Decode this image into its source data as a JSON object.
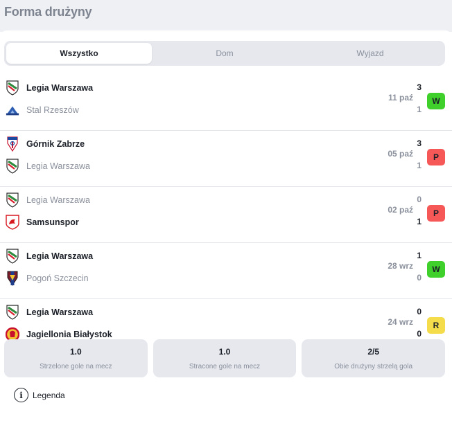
{
  "header": {
    "title": "Forma drużyny"
  },
  "tabs": [
    {
      "label": "Wszystko"
    },
    {
      "label": "Dom"
    },
    {
      "label": "Wyjazd"
    }
  ],
  "matches": [
    {
      "home": {
        "name": "Legia Warszawa",
        "crest": "legia-crest",
        "score": "3"
      },
      "away": {
        "name": "Stal Rzeszów",
        "crest": "stal-rzeszow-crest",
        "score": "1"
      },
      "date": "11 paź",
      "result": "W",
      "result_color": "#3fd02c"
    },
    {
      "home": {
        "name": "Górnik Zabrze",
        "crest": "gornik-zabrze-crest",
        "score": "3"
      },
      "away": {
        "name": "Legia Warszawa",
        "crest": "legia-crest",
        "score": "1"
      },
      "date": "05 paź",
      "result": "P",
      "result_color": "#f65858"
    },
    {
      "home": {
        "name": "Legia Warszawa",
        "crest": "legia-crest",
        "score": "0"
      },
      "away": {
        "name": "Samsunspor",
        "crest": "samsunspor-crest",
        "score": "1"
      },
      "date": "02 paź",
      "result": "P",
      "result_color": "#f65858"
    },
    {
      "home": {
        "name": "Legia Warszawa",
        "crest": "legia-crest",
        "score": "1"
      },
      "away": {
        "name": "Pogoń Szczecin",
        "crest": "pogon-szczecin-crest",
        "score": "0"
      },
      "date": "28 wrz",
      "result": "W",
      "result_color": "#3fd02c"
    },
    {
      "home": {
        "name": "Legia Warszawa",
        "crest": "legia-crest",
        "score": "0"
      },
      "away": {
        "name": "Jagiellonia Białystok",
        "crest": "jagiellonia-crest",
        "score": "0"
      },
      "date": "24 wrz",
      "result": "R",
      "result_color": "#f4dc4b"
    }
  ],
  "stats": [
    {
      "value": "1.0",
      "label": "Strzelone gole na mecz"
    },
    {
      "value": "1.0",
      "label": "Stracone gole na mecz"
    },
    {
      "value": "2/5",
      "label": "Obie drużyny strzelą gola"
    }
  ],
  "legend": {
    "label": "Legenda",
    "icon": "info-icon"
  }
}
